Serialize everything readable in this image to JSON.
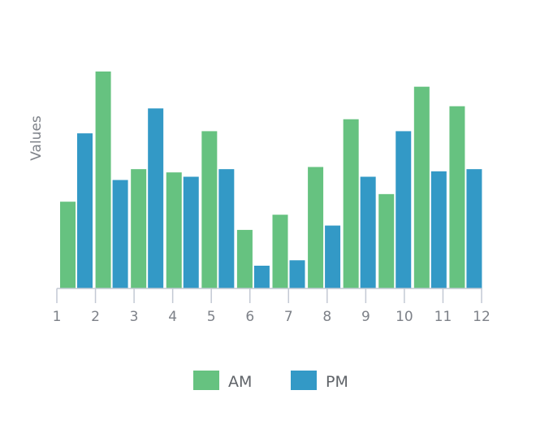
{
  "chart_data": {
    "type": "bar",
    "title": "",
    "xlabel": "",
    "ylabel": "Values",
    "categories": [
      "1",
      "2",
      "3",
      "4",
      "5",
      "6",
      "7",
      "8",
      "9",
      "10",
      "11",
      "12"
    ],
    "series": [
      {
        "name": "AM",
        "color": "#66c280",
        "values": [
          80,
          200,
          110,
          107,
          145,
          54,
          68,
          112,
          156,
          87,
          186,
          168
        ]
      },
      {
        "name": "PM",
        "color": "#3399c6",
        "values": [
          143,
          100,
          166,
          103,
          110,
          21,
          26,
          58,
          103,
          145,
          108,
          110
        ]
      }
    ],
    "ylim": [
      0,
      200
    ],
    "grid": false,
    "legend": "bottom"
  }
}
